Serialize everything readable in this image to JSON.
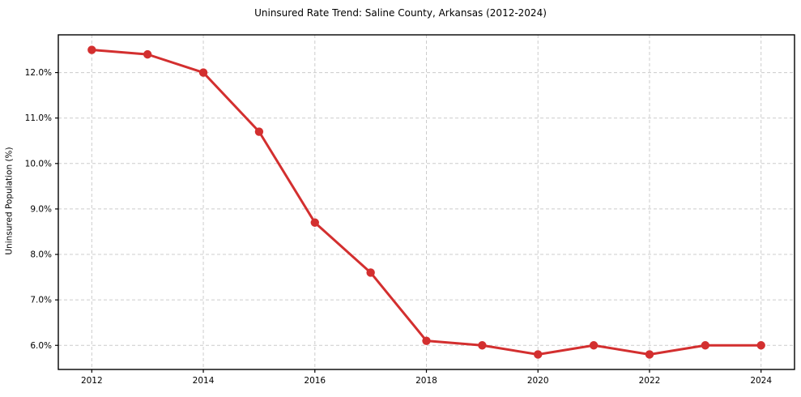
{
  "chart_data": {
    "type": "line",
    "title": "Uninsured Rate Trend: Saline County, Arkansas (2012-2024)",
    "xlabel": "",
    "ylabel": "Uninsured Population (%)",
    "x": [
      2012,
      2013,
      2014,
      2015,
      2016,
      2017,
      2018,
      2019,
      2020,
      2021,
      2022,
      2023,
      2024
    ],
    "values": [
      12.5,
      12.4,
      12.0,
      10.7,
      8.7,
      7.6,
      6.1,
      6.0,
      5.8,
      6.0,
      5.8,
      6.0,
      6.0
    ],
    "xlim": [
      2011.4,
      2024.6
    ],
    "ylim": [
      5.47,
      12.83
    ],
    "xticks": {
      "values": [
        2012,
        2014,
        2016,
        2018,
        2020,
        2022,
        2024
      ],
      "labels": [
        "2012",
        "2014",
        "2016",
        "2018",
        "2020",
        "2022",
        "2024"
      ]
    },
    "yticks": {
      "values": [
        6,
        7,
        8,
        9,
        10,
        11,
        12
      ],
      "labels": [
        "6.0%",
        "7.0%",
        "8.0%",
        "9.0%",
        "10.0%",
        "11.0%",
        "12.0%"
      ]
    },
    "grid": true,
    "grid_style": "dashed",
    "legend": false,
    "style": {
      "line_color": "#d32f2f",
      "marker": "circle",
      "grid_color": "#cccccc",
      "spine_color": "#000000",
      "background": "#ffffff"
    }
  }
}
